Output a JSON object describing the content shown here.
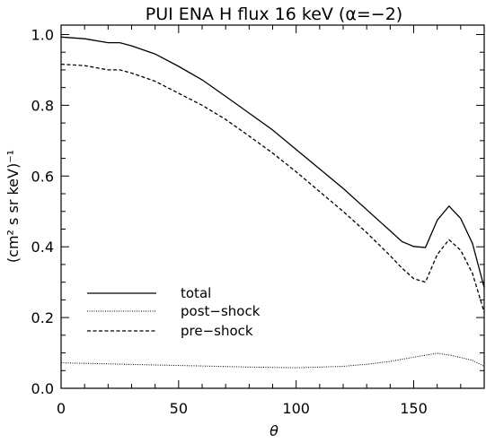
{
  "chart_data": {
    "type": "line",
    "title": "PUI ENA H flux 16 keV (α=−2)",
    "xlabel": "θ",
    "ylabel": "(cm² s sr keV)⁻¹",
    "xlim": [
      0,
      180
    ],
    "ylim": [
      0,
      1.0
    ],
    "xticks": [
      0,
      50,
      100,
      150
    ],
    "xtick_labels": [
      "0",
      "50",
      "100",
      "150"
    ],
    "yticks": [
      0,
      0.2,
      0.4,
      0.6,
      0.8,
      1.0
    ],
    "ytick_labels": [
      "0.0",
      "0.2",
      "0.4",
      "0.6",
      "0.8",
      "1.0"
    ],
    "grid": false,
    "legend_position": "bottom-left",
    "series": [
      {
        "name": "total",
        "style": "solid",
        "x": [
          0,
          10,
          20,
          25,
          30,
          40,
          50,
          60,
          70,
          80,
          90,
          100,
          110,
          120,
          130,
          140,
          145,
          150,
          155,
          160,
          165,
          170,
          175,
          180
        ],
        "y": [
          0.993,
          0.988,
          0.977,
          0.977,
          0.968,
          0.945,
          0.91,
          0.872,
          0.825,
          0.778,
          0.73,
          0.675,
          0.62,
          0.565,
          0.505,
          0.445,
          0.415,
          0.401,
          0.398,
          0.475,
          0.515,
          0.48,
          0.41,
          0.285
        ]
      },
      {
        "name": "post−shock",
        "style": "dotted",
        "x": [
          0,
          20,
          40,
          60,
          80,
          100,
          120,
          130,
          140,
          150,
          160,
          165,
          170,
          175,
          180
        ],
        "y": [
          0.072,
          0.069,
          0.066,
          0.063,
          0.06,
          0.058,
          0.062,
          0.068,
          0.076,
          0.088,
          0.099,
          0.094,
          0.087,
          0.079,
          0.062
        ]
      },
      {
        "name": "pre−shock",
        "style": "dashed",
        "x": [
          0,
          10,
          20,
          25,
          30,
          40,
          50,
          60,
          70,
          80,
          90,
          100,
          110,
          120,
          130,
          140,
          145,
          150,
          155,
          160,
          165,
          170,
          175,
          180
        ],
        "y": [
          0.916,
          0.912,
          0.9,
          0.9,
          0.891,
          0.868,
          0.834,
          0.8,
          0.76,
          0.713,
          0.665,
          0.612,
          0.556,
          0.5,
          0.44,
          0.375,
          0.34,
          0.31,
          0.3,
          0.378,
          0.42,
          0.39,
          0.325,
          0.215
        ]
      }
    ]
  }
}
